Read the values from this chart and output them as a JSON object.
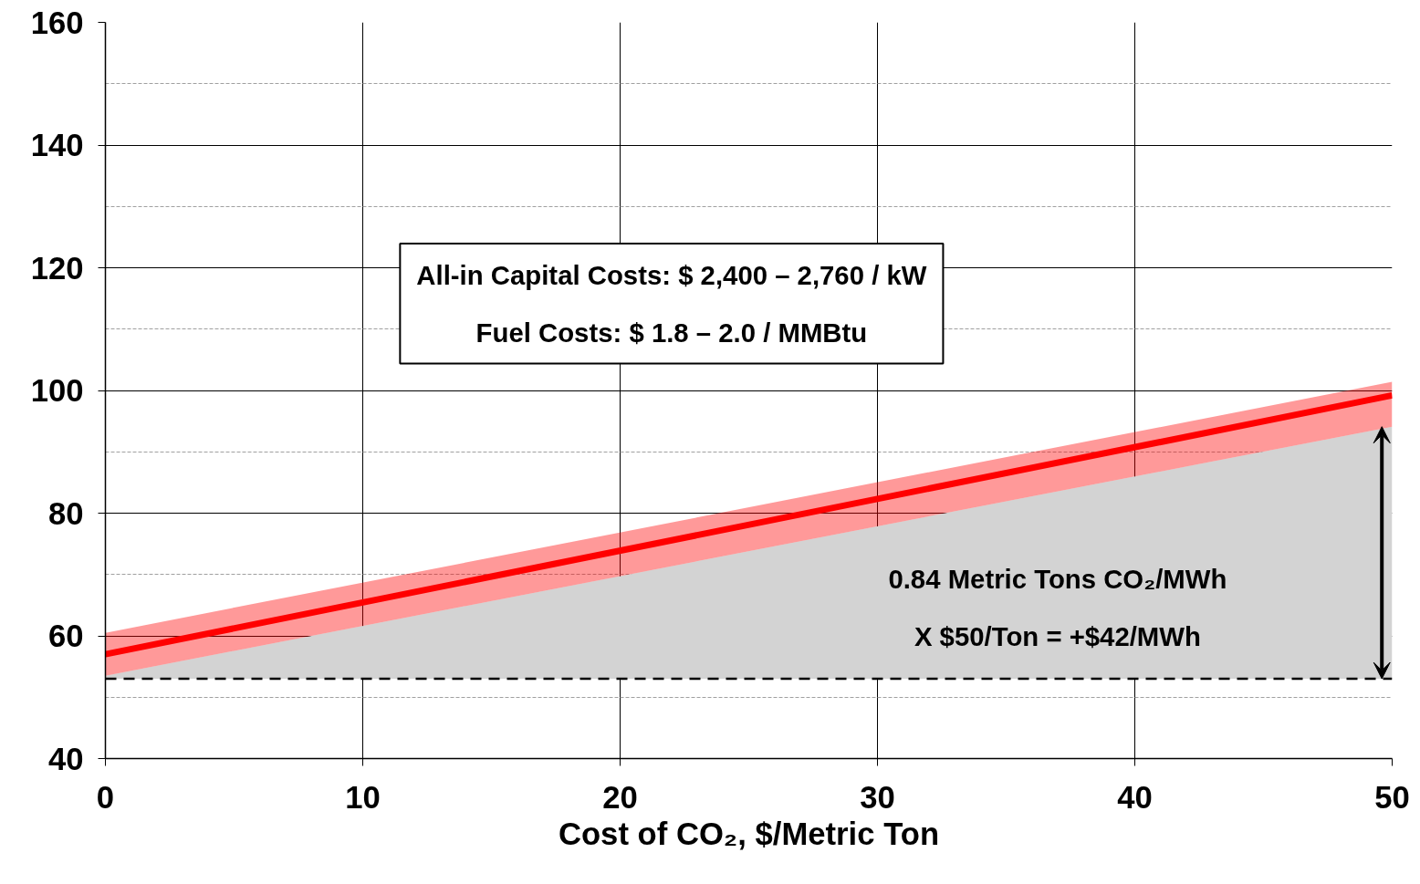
{
  "chart_data": {
    "type": "line",
    "xlabel": "Cost of CO₂, $/Metric Ton",
    "x": [
      0,
      50
    ],
    "series": [
      {
        "type": "area",
        "color": "#d3d3d3",
        "values": [
          53.5,
          94.1
        ]
      },
      {
        "color": "#ff0000",
        "values": [
          57,
          99.2
        ],
        "lower": [
          53.5,
          94.1
        ],
        "upper": [
          60.5,
          101.4
        ]
      }
    ],
    "ref_lines": [
      {
        "axis": "y",
        "value": 53,
        "color": "#000000",
        "line_style": "dashed"
      }
    ],
    "annotations": [
      "All-in Capital Costs: $ 2,400 – 2,760 / kW",
      "Fuel Costs: $ 1.8 – 2.0 / MMBtu",
      "0.84 Metric Tons CO₂/MWh",
      "X $50/Ton = +$42/MWh"
    ],
    "xlim": [
      0,
      50
    ],
    "xticks": [
      0,
      10,
      20,
      30,
      40,
      50
    ],
    "ylim": [
      40,
      160
    ],
    "yticks": [
      40,
      {
        "value": 50,
        "label": null
      },
      60,
      {
        "value": 70,
        "label": null
      },
      80,
      {
        "value": 90,
        "label": null
      },
      100,
      {
        "value": 110,
        "label": null
      },
      120,
      {
        "value": 130,
        "label": null
      },
      140,
      {
        "value": 150,
        "label": null
      },
      160
    ],
    "grid": true
  }
}
